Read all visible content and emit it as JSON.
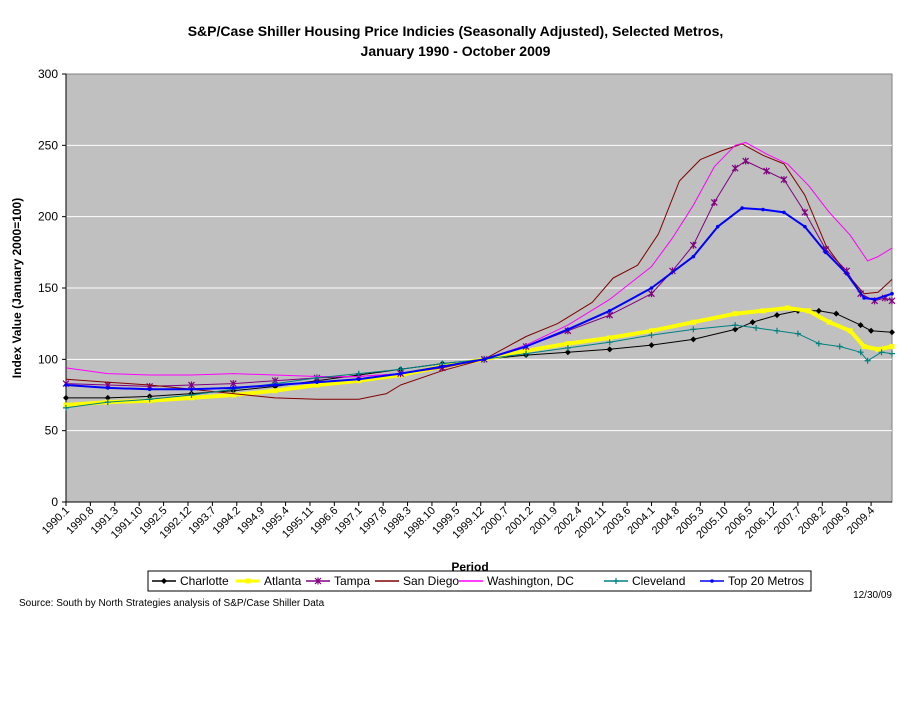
{
  "chart_data": {
    "type": "line",
    "title_line1": "S&P/Case Shiller Housing Price Indicies (Seasonally Adjusted), Selected Metros,",
    "title_line2": "January 1990 - October 2009",
    "xlabel": "Period",
    "ylabel": "Index Value (January 2000=100)",
    "ylim": [
      0,
      300
    ],
    "yticks": [
      0,
      50,
      100,
      150,
      200,
      250,
      300
    ],
    "x_start": "1990.1",
    "x_end": "2009.10",
    "xtick_labels": [
      "1990.1",
      "1990.8",
      "1991.3",
      "1991.10",
      "1992.5",
      "1992.12",
      "1993.7",
      "1994.2",
      "1994.9",
      "1995.4",
      "1995.11",
      "1996.6",
      "1997.1",
      "1997.8",
      "1998.3",
      "1998.10",
      "1999.5",
      "1999.12",
      "2000.7",
      "2001.2",
      "2001.9",
      "2002.4",
      "2002.11",
      "2003.6",
      "2004.1",
      "2004.8",
      "2005.3",
      "2005.10",
      "2006.5",
      "2006.12",
      "2007.7",
      "2008.2",
      "2008.9",
      "2009.4"
    ],
    "grid": "horizontal",
    "legend_position": "bottom",
    "plot_background": "#c0c0c0",
    "series": [
      {
        "name": "Charlotte",
        "color": "#000000",
        "marker": "diamond",
        "points": [
          [
            "1990.1",
            73
          ],
          [
            "1991.1",
            73
          ],
          [
            "1992.1",
            74
          ],
          [
            "1993.1",
            76
          ],
          [
            "1994.1",
            78
          ],
          [
            "1995.1",
            81
          ],
          [
            "1996.1",
            85
          ],
          [
            "1997.1",
            89
          ],
          [
            "1998.1",
            93
          ],
          [
            "1999.1",
            97
          ],
          [
            "2000.1",
            100
          ],
          [
            "2001.1",
            103
          ],
          [
            "2002.1",
            105
          ],
          [
            "2003.1",
            107
          ],
          [
            "2004.1",
            110
          ],
          [
            "2005.1",
            114
          ],
          [
            "2006.1",
            121
          ],
          [
            "2006.6",
            126
          ],
          [
            "2007.1",
            131
          ],
          [
            "2007.7",
            134
          ],
          [
            "2008.1",
            134
          ],
          [
            "2008.6",
            132
          ],
          [
            "2009.1",
            124
          ],
          [
            "2009.4",
            120
          ],
          [
            "2009.10",
            119
          ]
        ]
      },
      {
        "name": "Atlanta",
        "color": "#ffff00",
        "marker": "square",
        "points": [
          [
            "1990.1",
            68
          ],
          [
            "1991.1",
            70
          ],
          [
            "1992.1",
            71
          ],
          [
            "1993.1",
            73
          ],
          [
            "1994.1",
            75
          ],
          [
            "1995.1",
            78
          ],
          [
            "1996.1",
            82
          ],
          [
            "1997.1",
            85
          ],
          [
            "1998.1",
            89
          ],
          [
            "1999.1",
            95
          ],
          [
            "2000.1",
            100
          ],
          [
            "2001.1",
            106
          ],
          [
            "2002.1",
            111
          ],
          [
            "2003.1",
            115
          ],
          [
            "2004.1",
            120
          ],
          [
            "2005.1",
            126
          ],
          [
            "2006.1",
            132
          ],
          [
            "2006.9",
            134
          ],
          [
            "2007.4",
            136
          ],
          [
            "2007.10",
            134
          ],
          [
            "2008.4",
            126
          ],
          [
            "2008.10",
            120
          ],
          [
            "2009.2",
            109
          ],
          [
            "2009.6",
            107
          ],
          [
            "2009.10",
            109
          ]
        ]
      },
      {
        "name": "Tampa",
        "color": "#800080",
        "marker": "star",
        "points": [
          [
            "1990.1",
            83
          ],
          [
            "1991.1",
            82
          ],
          [
            "1992.1",
            81
          ],
          [
            "1993.1",
            82
          ],
          [
            "1994.1",
            83
          ],
          [
            "1995.1",
            85
          ],
          [
            "1996.1",
            87
          ],
          [
            "1997.1",
            88
          ],
          [
            "1998.1",
            90
          ],
          [
            "1999.1",
            94
          ],
          [
            "2000.1",
            100
          ],
          [
            "2001.1",
            109
          ],
          [
            "2002.1",
            120
          ],
          [
            "2003.1",
            131
          ],
          [
            "2004.1",
            146
          ],
          [
            "2004.7",
            162
          ],
          [
            "2005.1",
            180
          ],
          [
            "2005.7",
            210
          ],
          [
            "2006.1",
            234
          ],
          [
            "2006.4",
            239
          ],
          [
            "2006.10",
            232
          ],
          [
            "2007.3",
            226
          ],
          [
            "2007.9",
            203
          ],
          [
            "2008.3",
            177
          ],
          [
            "2008.9",
            162
          ],
          [
            "2009.1",
            146
          ],
          [
            "2009.5",
            141
          ],
          [
            "2009.8",
            143
          ],
          [
            "2009.10",
            141
          ]
        ]
      },
      {
        "name": "San Diego",
        "color": "#800000",
        "marker": "none",
        "points": [
          [
            "1990.1",
            86
          ],
          [
            "1991.1",
            84
          ],
          [
            "1992.1",
            82
          ],
          [
            "1993.1",
            79
          ],
          [
            "1994.1",
            76
          ],
          [
            "1995.1",
            73
          ],
          [
            "1996.1",
            72
          ],
          [
            "1997.1",
            72
          ],
          [
            "1997.9",
            76
          ],
          [
            "1998.1",
            82
          ],
          [
            "1999.1",
            92
          ],
          [
            "2000.1",
            100
          ],
          [
            "2001.1",
            116
          ],
          [
            "2001.10",
            125
          ],
          [
            "2002.8",
            140
          ],
          [
            "2003.2",
            157
          ],
          [
            "2003.9",
            166
          ],
          [
            "2004.3",
            188
          ],
          [
            "2004.9",
            225
          ],
          [
            "2005.3",
            240
          ],
          [
            "2005.9",
            246
          ],
          [
            "2006.3",
            251
          ],
          [
            "2006.9",
            243
          ],
          [
            "2007.3",
            237
          ],
          [
            "2007.9",
            215
          ],
          [
            "2008.3",
            180
          ],
          [
            "2008.9",
            160
          ],
          [
            "2009.2",
            146
          ],
          [
            "2009.6",
            147
          ],
          [
            "2009.10",
            156
          ]
        ]
      },
      {
        "name": "Washington, DC",
        "color": "#ff00ff",
        "marker": "none",
        "points": [
          [
            "1990.1",
            94
          ],
          [
            "1991.1",
            90
          ],
          [
            "1992.1",
            89
          ],
          [
            "1993.1",
            89
          ],
          [
            "1994.1",
            90
          ],
          [
            "1995.1",
            89
          ],
          [
            "1996.1",
            88
          ],
          [
            "1997.1",
            88
          ],
          [
            "1998.1",
            90
          ],
          [
            "1999.1",
            95
          ],
          [
            "2000.1",
            100
          ],
          [
            "2001.1",
            110
          ],
          [
            "2002.1",
            124
          ],
          [
            "2003.1",
            142
          ],
          [
            "2004.1",
            165
          ],
          [
            "2004.7",
            185
          ],
          [
            "2005.1",
            208
          ],
          [
            "2005.7",
            235
          ],
          [
            "2006.1",
            250
          ],
          [
            "2006.4",
            252
          ],
          [
            "2006.10",
            244
          ],
          [
            "2007.4",
            237
          ],
          [
            "2007.10",
            222
          ],
          [
            "2008.4",
            203
          ],
          [
            "2008.10",
            187
          ],
          [
            "2009.3",
            169
          ],
          [
            "2009.6",
            172
          ],
          [
            "2009.10",
            178
          ]
        ]
      },
      {
        "name": "Cleveland",
        "color": "#008080",
        "marker": "plus",
        "points": [
          [
            "1990.1",
            66
          ],
          [
            "1991.1",
            70
          ],
          [
            "1992.1",
            72
          ],
          [
            "1993.1",
            75
          ],
          [
            "1994.1",
            79
          ],
          [
            "1995.1",
            83
          ],
          [
            "1996.1",
            87
          ],
          [
            "1997.1",
            90
          ],
          [
            "1998.1",
            93
          ],
          [
            "1999.1",
            97
          ],
          [
            "2000.1",
            100
          ],
          [
            "2001.1",
            104
          ],
          [
            "2002.1",
            108
          ],
          [
            "2003.1",
            112
          ],
          [
            "2004.1",
            117
          ],
          [
            "2005.1",
            121
          ],
          [
            "2006.1",
            124
          ],
          [
            "2006.7",
            122
          ],
          [
            "2007.1",
            120
          ],
          [
            "2007.7",
            118
          ],
          [
            "2008.1",
            111
          ],
          [
            "2008.7",
            109
          ],
          [
            "2009.1",
            105
          ],
          [
            "2009.3",
            99
          ],
          [
            "2009.7",
            105
          ],
          [
            "2009.10",
            104
          ]
        ]
      },
      {
        "name": "Top 20 Metros",
        "color": "#0000ff",
        "marker": "dot",
        "points": [
          [
            "1990.1",
            82
          ],
          [
            "1991.1",
            80
          ],
          [
            "1992.1",
            79
          ],
          [
            "1993.1",
            79
          ],
          [
            "1994.1",
            80
          ],
          [
            "1995.1",
            82
          ],
          [
            "1996.1",
            84
          ],
          [
            "1997.1",
            86
          ],
          [
            "1998.1",
            90
          ],
          [
            "1999.1",
            95
          ],
          [
            "2000.1",
            100
          ],
          [
            "2001.1",
            109
          ],
          [
            "2002.1",
            121
          ],
          [
            "2003.1",
            134
          ],
          [
            "2004.1",
            150
          ],
          [
            "2005.1",
            172
          ],
          [
            "2005.8",
            193
          ],
          [
            "2006.3",
            206
          ],
          [
            "2006.9",
            205
          ],
          [
            "2007.3",
            203
          ],
          [
            "2007.9",
            193
          ],
          [
            "2008.3",
            175
          ],
          [
            "2008.9",
            160
          ],
          [
            "2009.2",
            143
          ],
          [
            "2009.5",
            142
          ],
          [
            "2009.10",
            146
          ]
        ]
      }
    ]
  },
  "source_note": "Source: South by North Strategies analysis of S&P/Case Shiller Data",
  "date_stamp": "12/30/09"
}
